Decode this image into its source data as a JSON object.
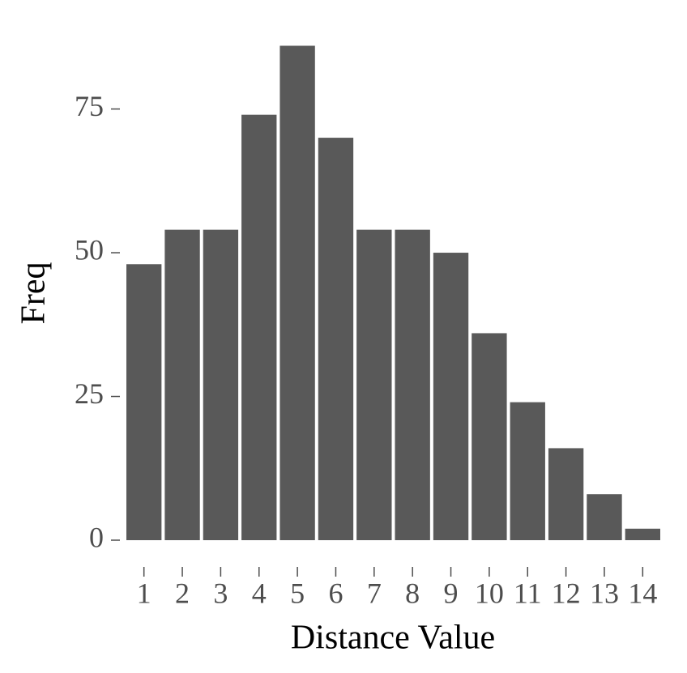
{
  "chart_data": {
    "type": "bar",
    "x_label": "Distance Value",
    "y_label": "Freq",
    "categories": [
      "1",
      "2",
      "3",
      "4",
      "5",
      "6",
      "7",
      "8",
      "9",
      "10",
      "11",
      "12",
      "13",
      "14"
    ],
    "values": [
      48,
      54,
      54,
      74,
      86,
      70,
      54,
      54,
      50,
      36,
      24,
      16,
      8,
      2
    ],
    "color": "#595959",
    "ylim": [
      0,
      86
    ],
    "yticks": [
      0,
      25,
      50,
      75
    ],
    "grid": false
  }
}
